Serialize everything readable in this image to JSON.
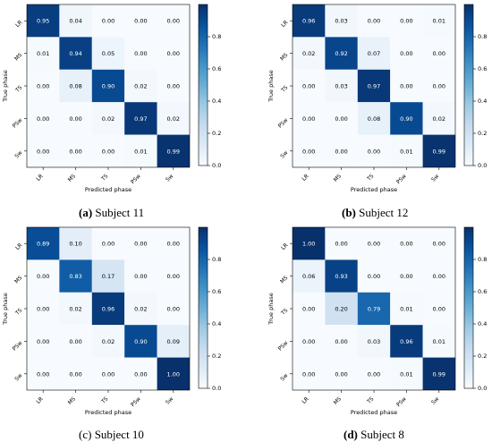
{
  "figure": {
    "panels": [
      {
        "caption_label": "(a)",
        "caption_text": " Subject 11",
        "label_bold": true
      },
      {
        "caption_label": "(b)",
        "caption_text": " Subject 12",
        "label_bold": true
      },
      {
        "caption_label": "(c)",
        "caption_text": " Subject 10",
        "label_bold": false
      },
      {
        "caption_label": "(d)",
        "caption_text": " Subject 8",
        "label_bold": true
      }
    ]
  },
  "chart_data": [
    {
      "type": "heatmap",
      "xlabel": "Predicted phase",
      "ylabel": "True phase",
      "categories": [
        "LR",
        "MS",
        "TS",
        "PSw",
        "Sw"
      ],
      "values": [
        [
          0.95,
          0.04,
          0.0,
          0.0,
          0.0
        ],
        [
          0.01,
          0.94,
          0.05,
          0.0,
          0.0
        ],
        [
          0.0,
          0.08,
          0.9,
          0.02,
          0.0
        ],
        [
          0.0,
          0.0,
          0.02,
          0.97,
          0.02
        ],
        [
          0.0,
          0.0,
          0.0,
          0.01,
          0.99
        ]
      ],
      "colorbar_ticks": [
        0.0,
        0.2,
        0.4,
        0.6,
        0.8
      ],
      "colorbar_range": [
        0,
        1
      ],
      "colormap": [
        "#f7fbff",
        "#08306b"
      ]
    },
    {
      "type": "heatmap",
      "xlabel": "Predicted phase",
      "ylabel": "True phase",
      "categories": [
        "LR",
        "MS",
        "TS",
        "PSw",
        "Sw"
      ],
      "values": [
        [
          0.96,
          0.03,
          0.0,
          0.0,
          0.01
        ],
        [
          0.02,
          0.92,
          0.07,
          0.0,
          0.0
        ],
        [
          0.0,
          0.03,
          0.97,
          0.0,
          0.0
        ],
        [
          0.0,
          0.0,
          0.08,
          0.9,
          0.02
        ],
        [
          0.0,
          0.0,
          0.0,
          0.01,
          0.99
        ]
      ],
      "colorbar_ticks": [
        0.0,
        0.2,
        0.4,
        0.6,
        0.8
      ],
      "colorbar_range": [
        0,
        1
      ],
      "colormap": [
        "#f7fbff",
        "#08306b"
      ]
    },
    {
      "type": "heatmap",
      "xlabel": "Predicted phase",
      "ylabel": "True phase",
      "categories": [
        "LR",
        "MS",
        "TS",
        "PSw",
        "Sw"
      ],
      "values": [
        [
          0.89,
          0.1,
          0.0,
          0.0,
          0.0
        ],
        [
          0.0,
          0.83,
          0.17,
          0.0,
          0.0
        ],
        [
          0.0,
          0.02,
          0.96,
          0.02,
          0.0
        ],
        [
          0.0,
          0.0,
          0.02,
          0.9,
          0.09
        ],
        [
          0.0,
          0.0,
          0.0,
          0.0,
          1.0
        ]
      ],
      "colorbar_ticks": [
        0.0,
        0.2,
        0.4,
        0.6,
        0.8
      ],
      "colorbar_range": [
        0,
        1
      ],
      "colormap": [
        "#f7fbff",
        "#08306b"
      ]
    },
    {
      "type": "heatmap",
      "xlabel": "Predicted phase",
      "ylabel": "True phase",
      "categories": [
        "LR",
        "MS",
        "TS",
        "PSw",
        "Sw"
      ],
      "values": [
        [
          1.0,
          0.0,
          0.0,
          0.0,
          0.0
        ],
        [
          0.06,
          0.93,
          0.0,
          0.0,
          0.0
        ],
        [
          0.0,
          0.2,
          0.79,
          0.01,
          0.0
        ],
        [
          0.0,
          0.0,
          0.03,
          0.96,
          0.01
        ],
        [
          0.0,
          0.0,
          0.0,
          0.01,
          0.99
        ]
      ],
      "colorbar_ticks": [
        0.0,
        0.2,
        0.4,
        0.6,
        0.8
      ],
      "colorbar_range": [
        0,
        1
      ],
      "colormap": [
        "#f7fbff",
        "#08306b"
      ]
    }
  ]
}
